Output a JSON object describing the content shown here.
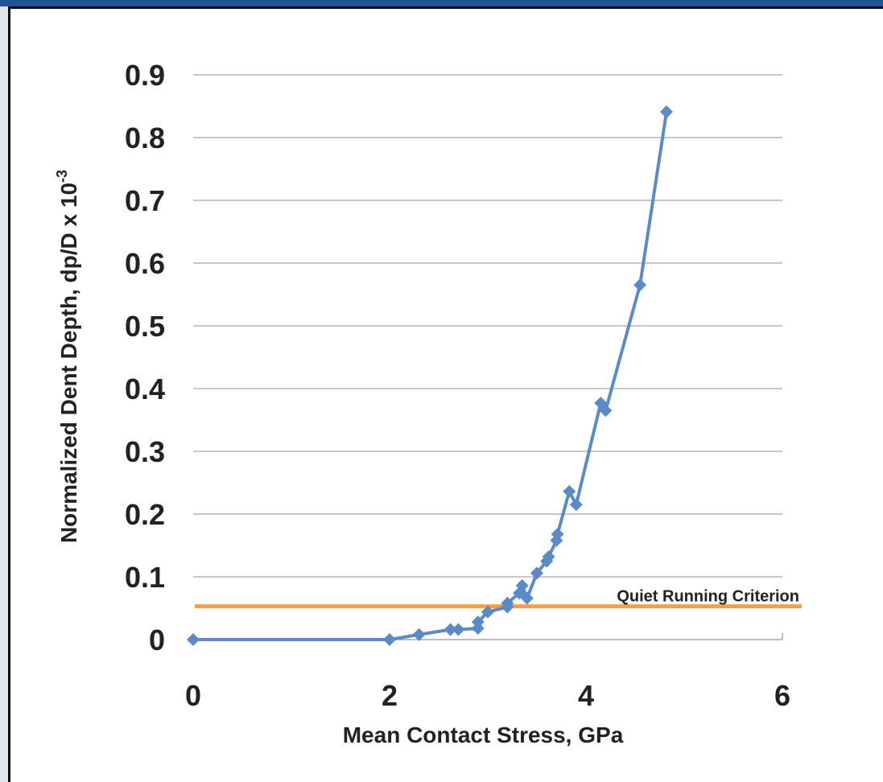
{
  "colors": {
    "series": "#5b8ac4",
    "reference_line": "#f0a04b",
    "grid": "#a8a8a8",
    "frame_bar": "#1f5597"
  },
  "chart_data": {
    "type": "line",
    "title": "",
    "xlabel": "Mean Contact Stress, GPa",
    "ylabel": "Normalized Dent Depth, dp/D x 10",
    "ylabel_superscript": "-3",
    "xlim": [
      0,
      6
    ],
    "ylim": [
      0,
      0.9
    ],
    "x_ticks": [
      "0",
      "2",
      "4",
      "6"
    ],
    "y_ticks": [
      "0",
      "0.1",
      "0.2",
      "0.3",
      "0.4",
      "0.5",
      "0.6",
      "0.7",
      "0.8",
      "0.9"
    ],
    "grid": "horizontal",
    "marker": "diamond",
    "series": [
      {
        "points": [
          [
            0,
            0
          ],
          [
            2.0,
            0.0
          ],
          [
            2.3,
            0.008
          ],
          [
            2.62,
            0.016
          ],
          [
            2.7,
            0.016
          ],
          [
            2.9,
            0.018
          ],
          [
            2.9,
            0.028
          ],
          [
            3.0,
            0.044
          ],
          [
            3.2,
            0.052
          ],
          [
            3.2,
            0.058
          ],
          [
            3.32,
            0.074
          ],
          [
            3.35,
            0.086
          ],
          [
            3.4,
            0.066
          ],
          [
            3.5,
            0.106
          ],
          [
            3.6,
            0.125
          ],
          [
            3.62,
            0.132
          ],
          [
            3.7,
            0.158
          ],
          [
            3.71,
            0.168
          ],
          [
            3.83,
            0.236
          ],
          [
            3.9,
            0.215
          ],
          [
            4.15,
            0.377
          ],
          [
            4.2,
            0.365
          ],
          [
            4.55,
            0.565
          ],
          [
            4.82,
            0.841
          ]
        ]
      }
    ],
    "reference_lines": [
      {
        "label": "Quiet Running Criterion",
        "y": 0.053
      }
    ]
  }
}
